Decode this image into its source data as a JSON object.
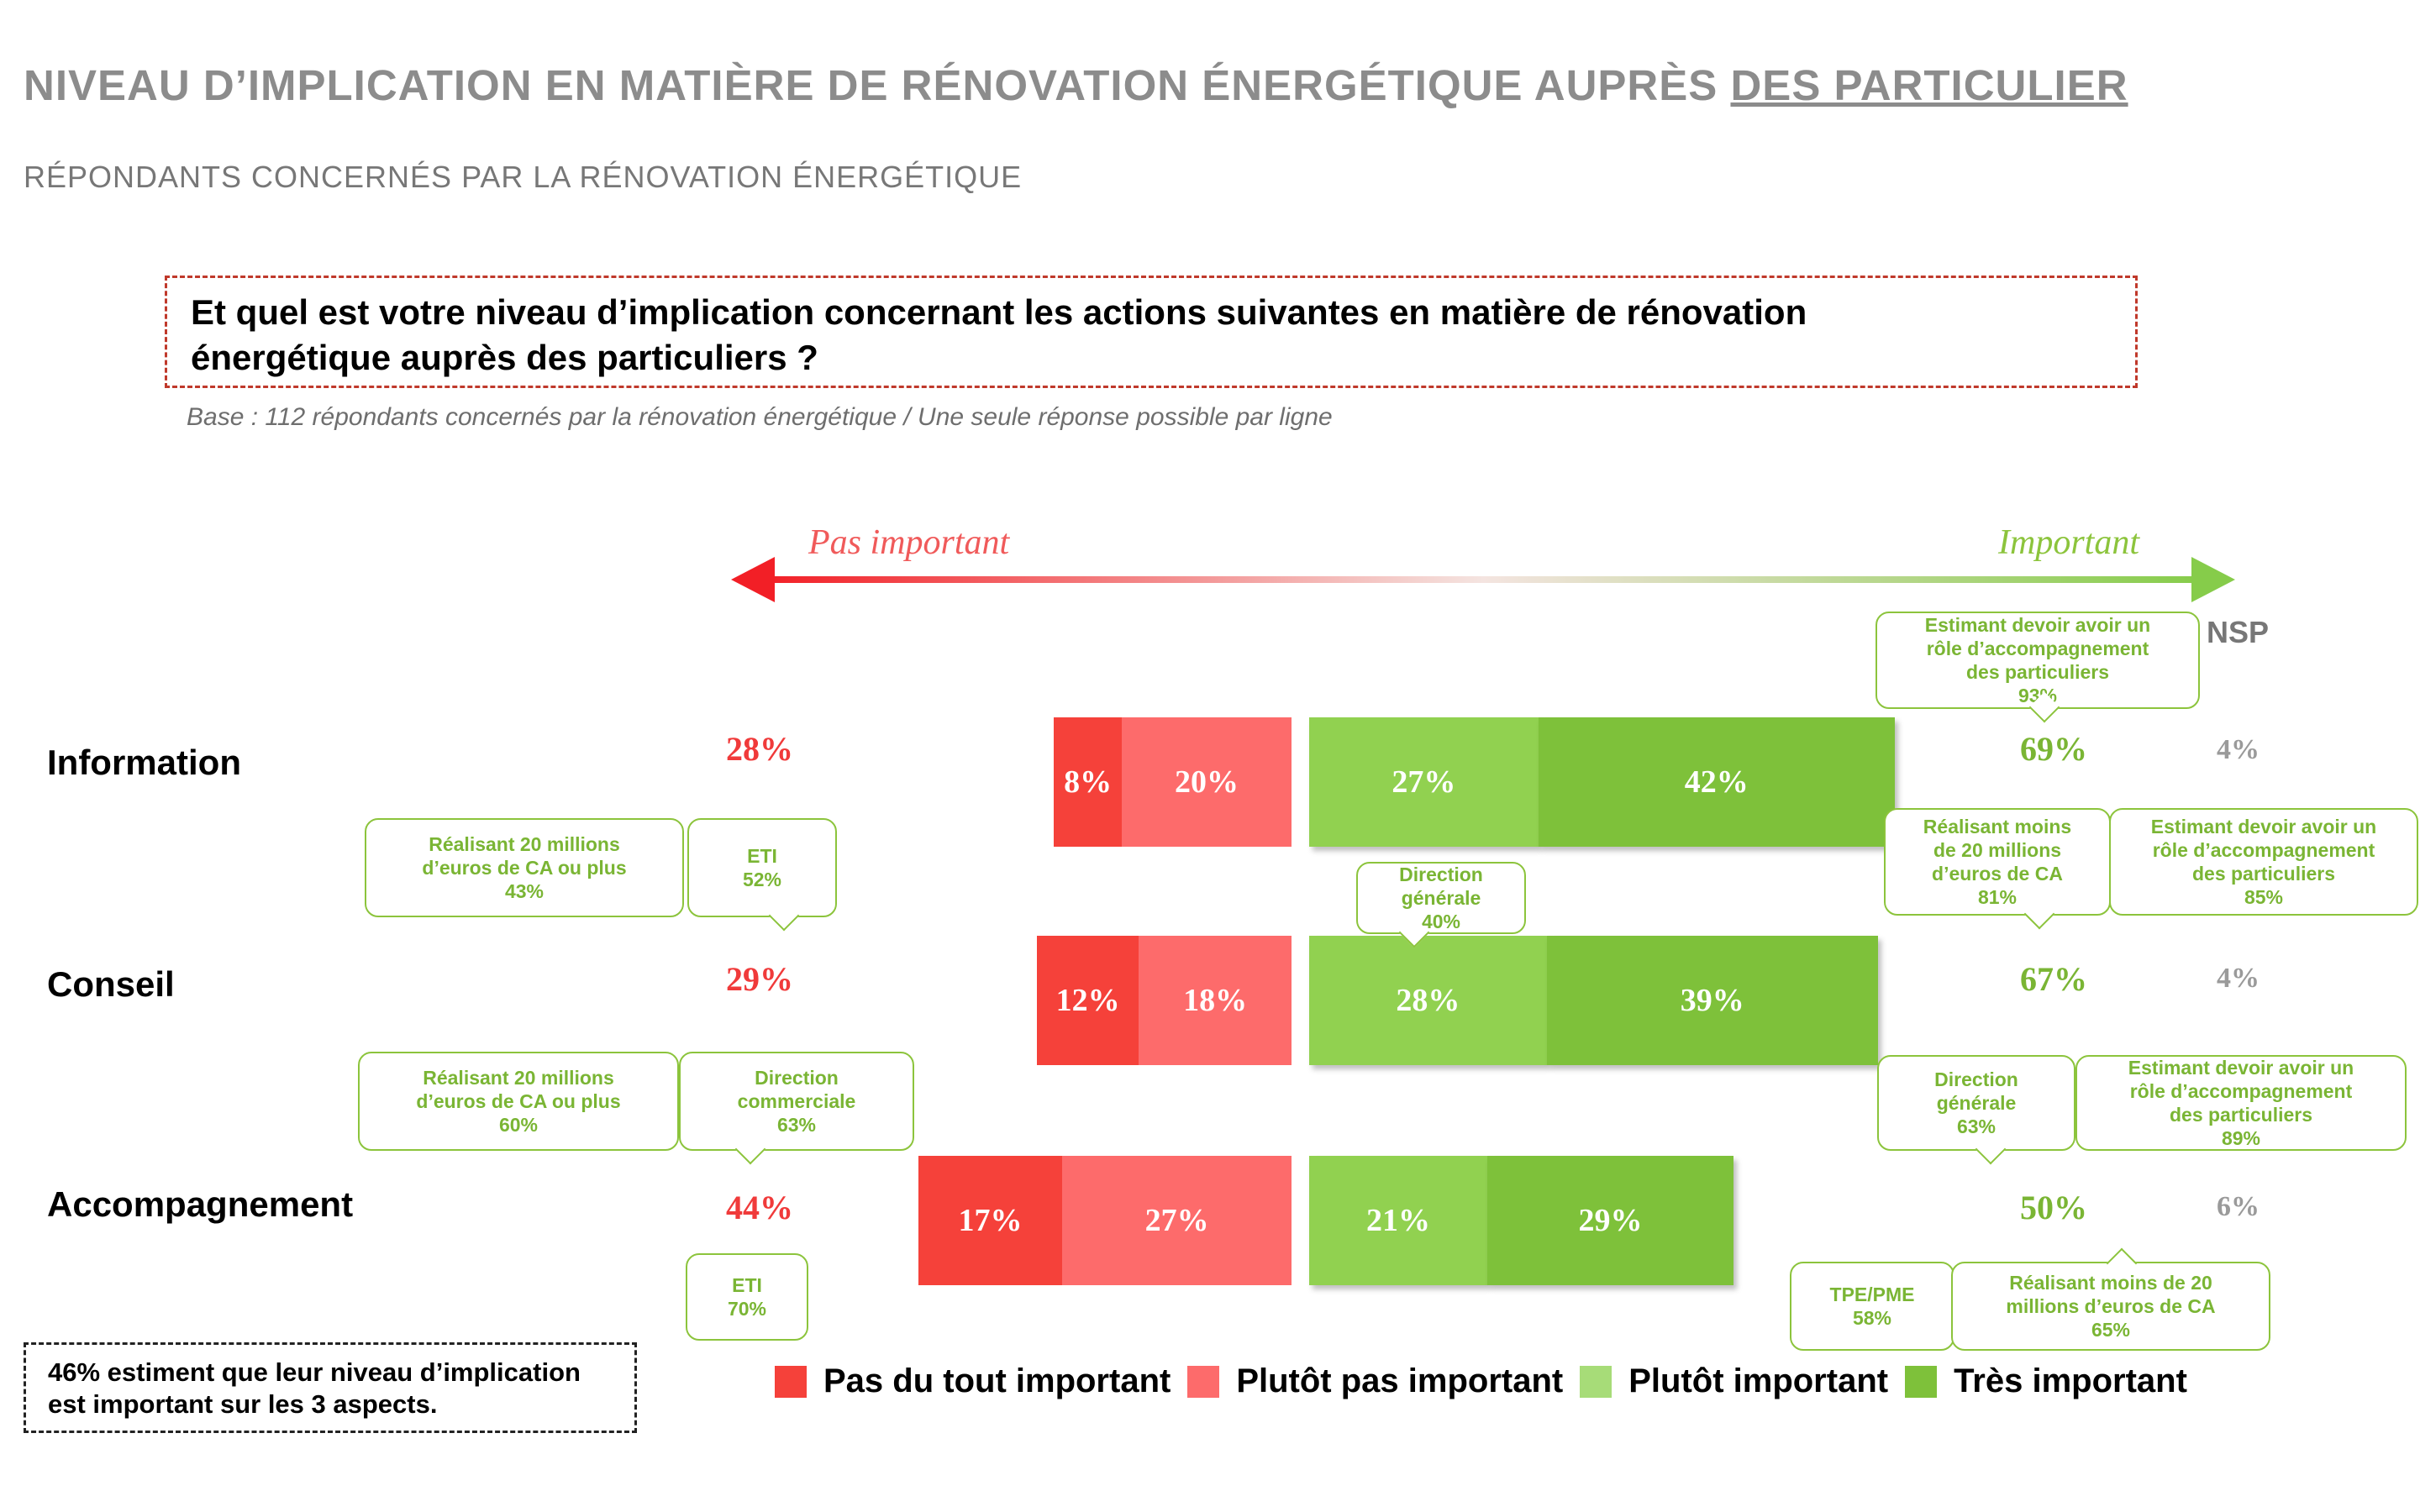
{
  "header": {
    "title_main": "NIVEAU D’IMPLICATION EN MATIÈRE DE RÉNOVATION ÉNERGÉTIQUE AUPRÈS ",
    "title_underlined": "DES PARTICULIER",
    "subtitle": "RÉPONDANTS CONCERNÉS PAR LA RÉNOVATION ÉNERGÉTIQUE",
    "question_line1": "Et quel est votre niveau d’implication concernant les actions suivantes en matière de rénovation",
    "question_line2": "énergétique auprès des particuliers ?",
    "base": "Base : 112 répondants concernés par la rénovation énergétique / Une seule réponse possible par ligne"
  },
  "scale": {
    "left": "Pas important",
    "right": "Important",
    "nsp_header": "NSP"
  },
  "colors": {
    "pas_du_tout": "#f5413a",
    "plutot_pas": "#fd6b6b",
    "plutot": "#91d150",
    "tres": "#7ec13a",
    "red_text": "#f03a3a",
    "green_text": "#7ab534"
  },
  "chart_data": {
    "type": "bar",
    "stacked": "diverging",
    "categories": [
      "Information",
      "Conseil",
      "Accompagnement"
    ],
    "series": [
      {
        "name": "Pas du tout important",
        "values": [
          8,
          12,
          17
        ]
      },
      {
        "name": "Plutôt pas important",
        "values": [
          20,
          18,
          27
        ]
      },
      {
        "name": "Plutôt important",
        "values": [
          27,
          28,
          21
        ]
      },
      {
        "name": "Très important",
        "values": [
          42,
          39,
          29
        ]
      }
    ],
    "labels": {
      "pas_du_tout": [
        "8%",
        "12%",
        "17%"
      ],
      "plutot_pas": [
        "20%",
        "18%",
        "27%"
      ],
      "plutot": [
        "27%",
        "28%",
        "21%"
      ],
      "tres": [
        "42%",
        "39%",
        "29%"
      ]
    },
    "total_not_important": [
      "28%",
      "29%",
      "44%"
    ],
    "total_important": [
      "69%",
      "67%",
      "50%"
    ],
    "nsp": [
      "4%",
      "4%",
      "6%"
    ],
    "legend": [
      "Pas du tout important",
      "Plutôt pas important",
      "Plutôt important",
      "Très important"
    ]
  },
  "callouts": {
    "c1": {
      "line1": "Estimant devoir avoir un",
      "line2": "rôle d’accompagnement",
      "line3": "des particuliers",
      "value": "93%"
    },
    "c2": {
      "line1": "Réalisant 20 millions",
      "line2": "d’euros de CA ou plus",
      "value": "43%"
    },
    "c3": {
      "line1": "ETI",
      "value": "52%"
    },
    "c4": {
      "line1": "Direction",
      "line2": "générale",
      "value": "40%"
    },
    "c5": {
      "line1": "Réalisant moins",
      "line2": "de 20 millions",
      "line3": "d’euros de CA",
      "value": "81%"
    },
    "c6": {
      "line1": "Estimant devoir avoir un",
      "line2": "rôle d’accompagnement",
      "line3": "des particuliers",
      "value": "85%"
    },
    "c7": {
      "line1": "Réalisant 20 millions",
      "line2": "d’euros de CA ou plus",
      "value": "60%"
    },
    "c8": {
      "line1": "Direction",
      "line2": "commerciale",
      "value": "63%"
    },
    "c9": {
      "line1": "Direction",
      "line2": "générale",
      "value": "63%"
    },
    "c10": {
      "line1": "Estimant devoir avoir un",
      "line2": "rôle d’accompagnement",
      "line3": "des particuliers",
      "value": "89%"
    },
    "c11": {
      "line1": "ETI",
      "value": "70%"
    },
    "c12": {
      "line1": "TPE/PME",
      "value": "58%"
    },
    "c13": {
      "line1": "Réalisant moins de 20",
      "line2": "millions d’euros de CA",
      "value": "65%"
    }
  },
  "note": {
    "line1": "46% estiment que leur niveau d’implication",
    "line2": "est important sur les 3 aspects."
  }
}
